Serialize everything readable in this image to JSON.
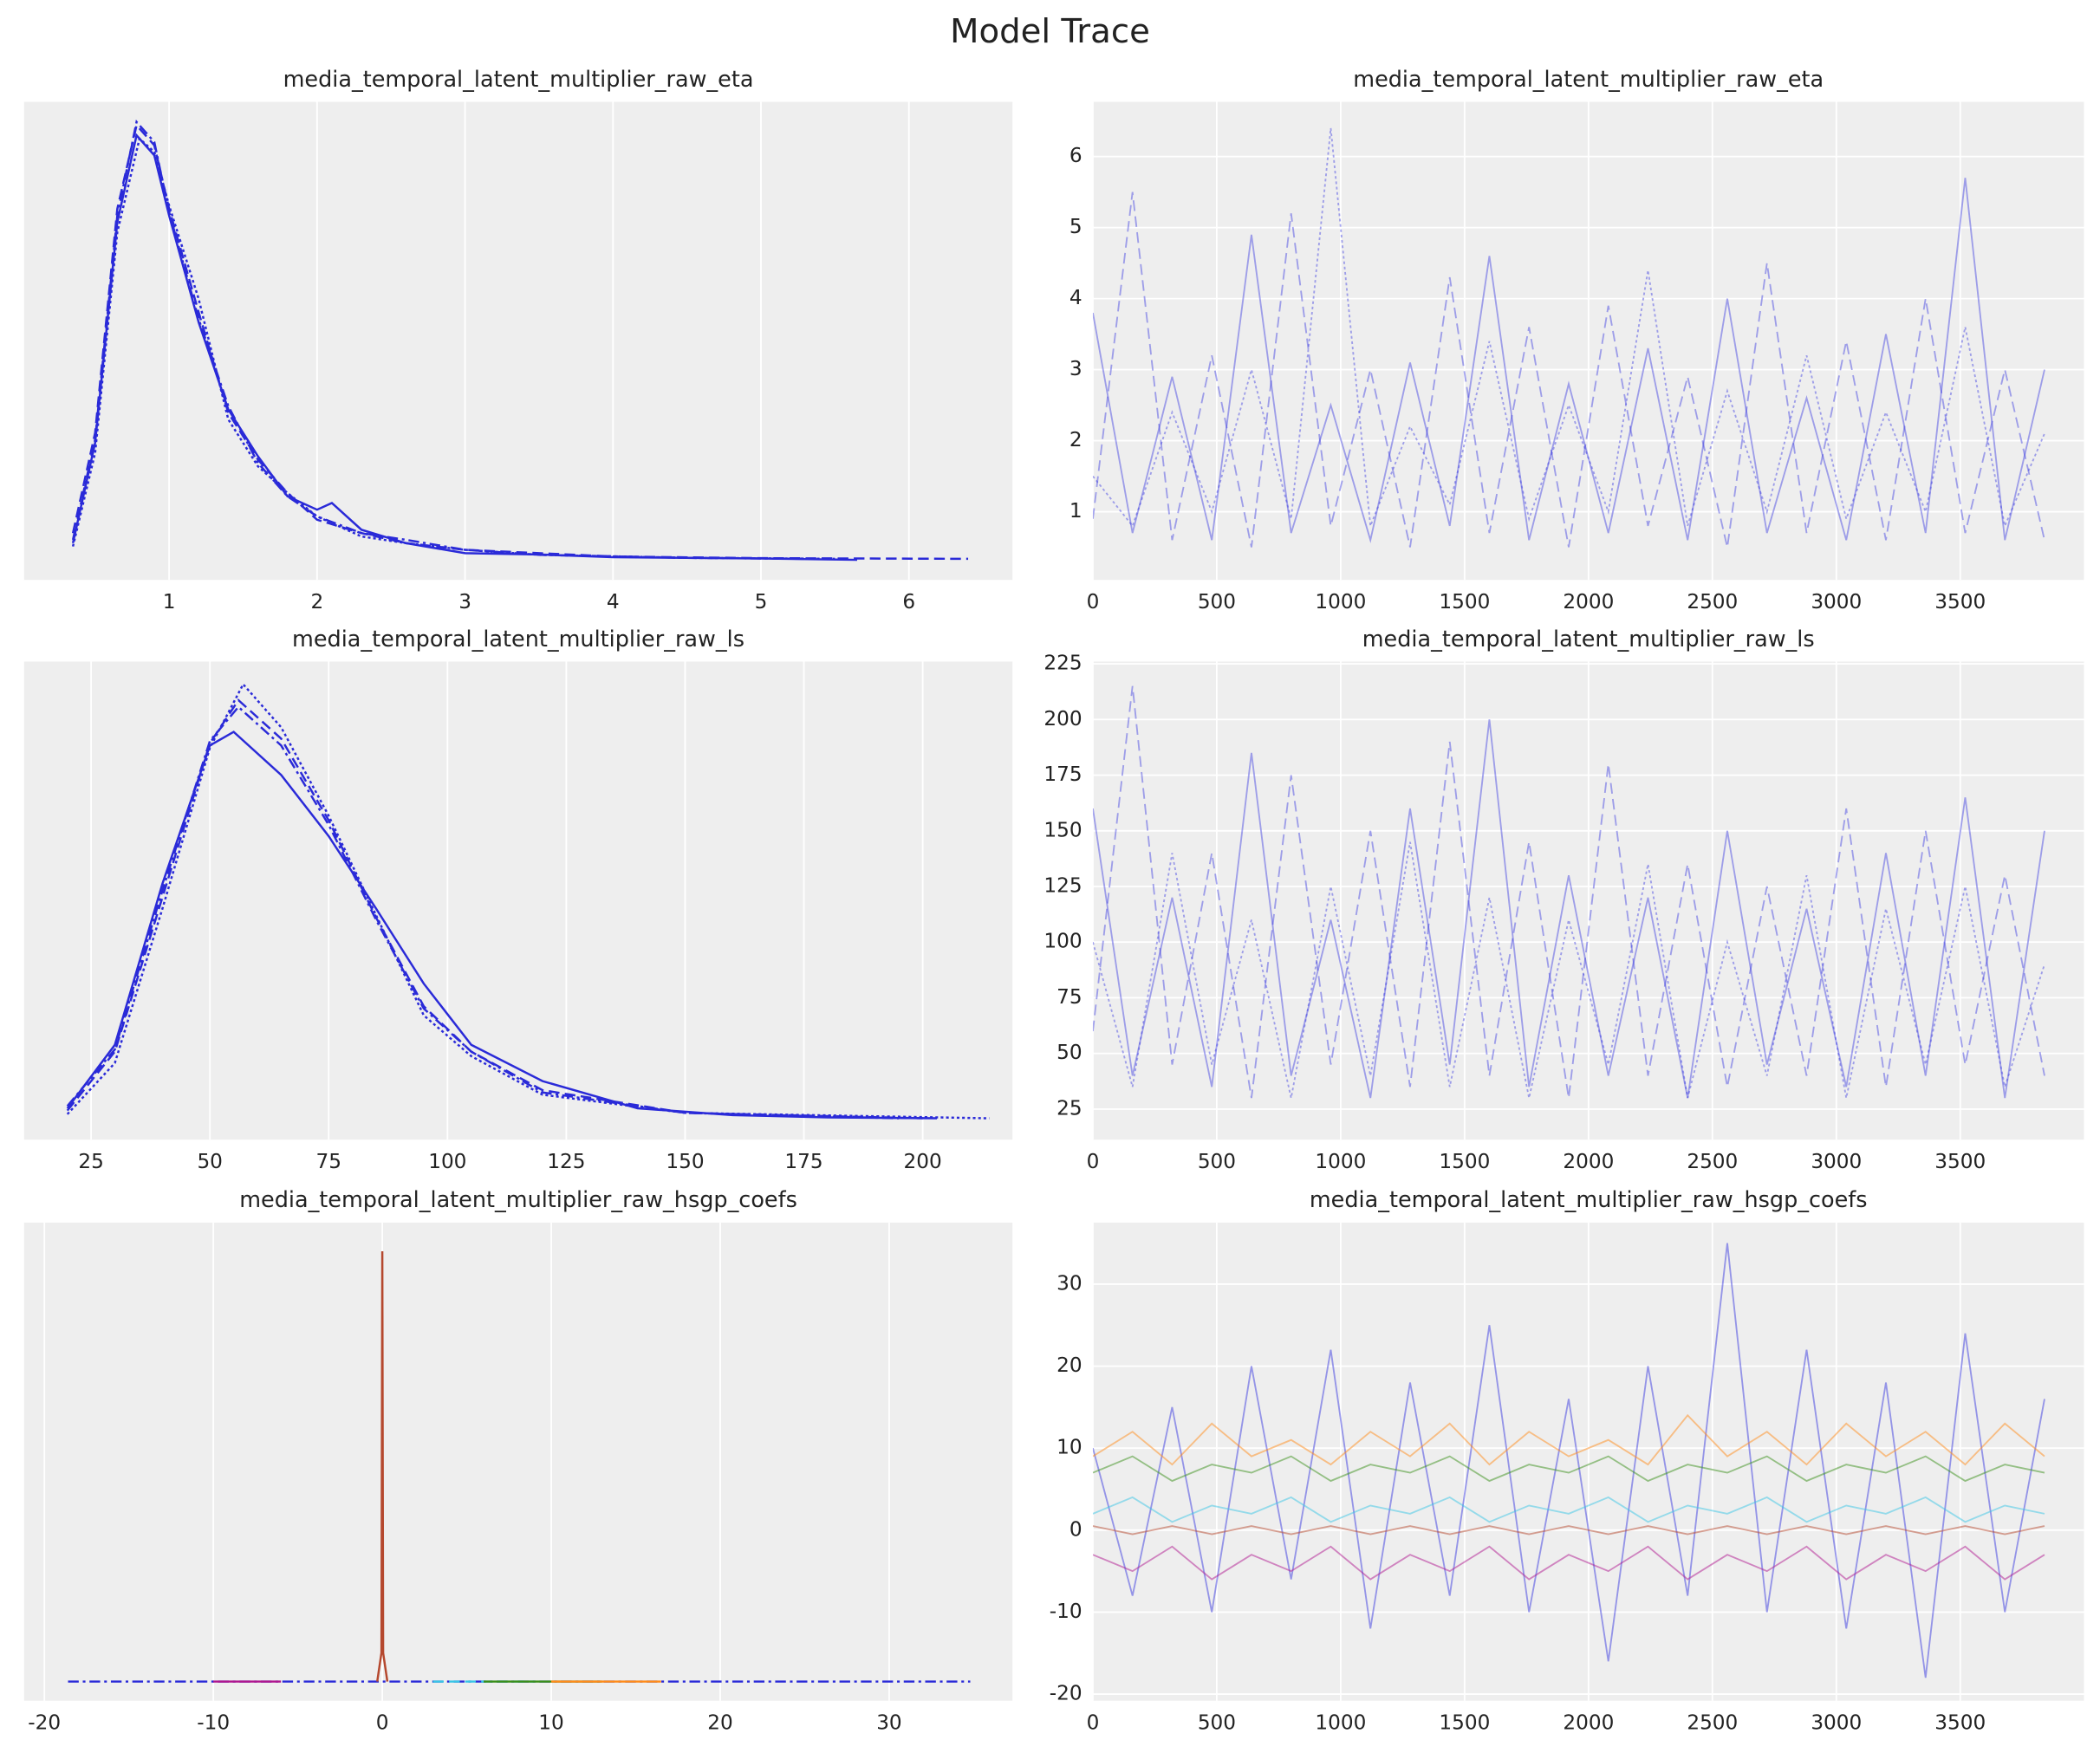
{
  "title": "Model Trace",
  "chart_data": [
    {
      "type": "line",
      "title": "media_temporal_latent_multiplier_raw_eta",
      "xlim": [
        0.02,
        6.7
      ],
      "xticks": [
        1,
        2,
        3,
        4,
        5,
        6
      ],
      "ylim": [
        -0.06,
        1.37
      ],
      "grid": true,
      "series": [
        {
          "color": "#2a2ad8",
          "linestyle": "solid",
          "x": [
            0.35,
            0.5,
            0.65,
            0.78,
            0.9,
            1.0,
            1.2,
            1.4,
            1.6,
            1.8,
            2.0,
            2.1,
            2.3,
            2.6,
            3.0,
            3.5,
            4.0,
            5.0,
            5.65
          ],
          "values": [
            0.05,
            0.35,
            1.01,
            1.27,
            1.21,
            1.03,
            0.71,
            0.45,
            0.31,
            0.19,
            0.15,
            0.17,
            0.09,
            0.05,
            0.02,
            0.016,
            0.008,
            0.004,
            0.0
          ]
        },
        {
          "color": "#2a2ad8",
          "linestyle": "dashed",
          "x": [
            0.35,
            0.5,
            0.65,
            0.78,
            0.9,
            1.0,
            1.2,
            1.4,
            1.6,
            1.8,
            2.0,
            2.3,
            2.6,
            3.0,
            3.5,
            4.0,
            5.0,
            6.4
          ],
          "values": [
            0.08,
            0.38,
            1.05,
            1.3,
            1.24,
            1.05,
            0.74,
            0.44,
            0.3,
            0.2,
            0.12,
            0.08,
            0.05,
            0.03,
            0.02,
            0.01,
            0.005,
            0.003
          ]
        },
        {
          "color": "#2a2ad8",
          "linestyle": "dotted",
          "x": [
            0.35,
            0.5,
            0.65,
            0.8,
            0.9,
            1.0,
            1.2,
            1.4,
            1.6,
            1.8,
            2.0,
            2.3,
            2.6,
            3.0,
            3.5,
            4.5,
            5.5
          ],
          "values": [
            0.04,
            0.32,
            0.98,
            1.26,
            1.22,
            1.06,
            0.78,
            0.42,
            0.28,
            0.2,
            0.13,
            0.07,
            0.05,
            0.03,
            0.015,
            0.006,
            0.003
          ]
        },
        {
          "color": "#2a2ad8",
          "linestyle": "dashdot",
          "x": [
            0.35,
            0.5,
            0.65,
            0.78,
            0.9,
            1.0,
            1.2,
            1.4,
            1.6,
            1.8,
            2.0,
            2.3,
            2.6,
            3.0,
            3.5,
            4.5,
            5.3
          ],
          "values": [
            0.06,
            0.36,
            1.03,
            1.31,
            1.25,
            1.04,
            0.72,
            0.46,
            0.29,
            0.19,
            0.13,
            0.08,
            0.06,
            0.03,
            0.015,
            0.006,
            0.003
          ]
        }
      ]
    },
    {
      "type": "line",
      "title": "media_temporal_latent_multiplier_raw_eta",
      "xlim": [
        0,
        3999
      ],
      "xticks": [
        0,
        500,
        1000,
        1500,
        2000,
        2500,
        3000,
        3500
      ],
      "ylim": [
        0.04,
        6.77
      ],
      "yticks": [
        1,
        2,
        3,
        4,
        5,
        6
      ],
      "grid": true,
      "alpha": 0.45,
      "x": [
        0,
        160,
        320,
        480,
        640,
        800,
        960,
        1120,
        1280,
        1440,
        1600,
        1760,
        1920,
        2080,
        2240,
        2400,
        2560,
        2720,
        2880,
        3040,
        3200,
        3360,
        3520,
        3680,
        3840
      ],
      "series": [
        {
          "color": "#3a3ae0",
          "linestyle": "solid",
          "values": [
            3.8,
            0.7,
            2.9,
            0.6,
            4.9,
            0.7,
            2.5,
            0.6,
            3.1,
            0.8,
            4.6,
            0.6,
            2.8,
            0.7,
            3.3,
            0.6,
            4.0,
            0.7,
            2.6,
            0.6,
            3.5,
            0.7,
            5.7,
            0.6,
            3.0
          ]
        },
        {
          "color": "#3a3ae0",
          "linestyle": "dashed",
          "values": [
            0.9,
            5.5,
            0.6,
            3.2,
            0.5,
            5.2,
            0.8,
            3.0,
            0.5,
            4.3,
            0.7,
            3.6,
            0.5,
            3.9,
            0.8,
            2.9,
            0.5,
            4.5,
            0.7,
            3.4,
            0.6,
            4.0,
            0.7,
            3.0,
            0.6
          ]
        },
        {
          "color": "#3a3ae0",
          "linestyle": "dotted",
          "values": [
            1.5,
            0.8,
            2.4,
            1.0,
            3.0,
            0.9,
            6.4,
            0.8,
            2.2,
            1.1,
            3.4,
            0.9,
            2.5,
            1.0,
            4.4,
            0.8,
            2.7,
            1.0,
            3.2,
            0.9,
            2.4,
            1.0,
            3.6,
            0.8,
            2.1
          ]
        }
      ]
    },
    {
      "type": "line",
      "title": "media_temporal_latent_multiplier_raw_ls",
      "xlim": [
        10.9,
        218.9
      ],
      "xticks": [
        25,
        50,
        75,
        100,
        125,
        150,
        175,
        200
      ],
      "ylim": [
        -0.00088,
        0.0202
      ],
      "grid": true,
      "series": [
        {
          "color": "#2a2ad8",
          "linestyle": "solid",
          "x": [
            20,
            30,
            40,
            50,
            55,
            65,
            75,
            85,
            95,
            105,
            120,
            140,
            160,
            180,
            203
          ],
          "values": [
            0.0005,
            0.0033,
            0.0104,
            0.0165,
            0.0171,
            0.0152,
            0.0125,
            0.0093,
            0.006,
            0.0033,
            0.0017,
            0.0005,
            0.0002,
            0.0001,
            6e-05
          ]
        },
        {
          "color": "#2a2ad8",
          "linestyle": "dotted",
          "x": [
            20,
            30,
            40,
            50,
            57,
            65,
            75,
            85,
            95,
            105,
            120,
            150,
            214
          ],
          "values": [
            0.00024,
            0.0025,
            0.0093,
            0.0164,
            0.0192,
            0.0173,
            0.0134,
            0.009,
            0.0046,
            0.0028,
            0.0011,
            0.0003,
            6e-05
          ]
        },
        {
          "color": "#2a2ad8",
          "linestyle": "dashed",
          "x": [
            20,
            30,
            40,
            50,
            56,
            65,
            75,
            85,
            95,
            105,
            120,
            150,
            200
          ],
          "values": [
            0.0004,
            0.003,
            0.0098,
            0.0166,
            0.0185,
            0.0168,
            0.0132,
            0.0089,
            0.005,
            0.003,
            0.0013,
            0.0003,
            6e-05
          ]
        },
        {
          "color": "#2a2ad8",
          "linestyle": "dashdot",
          "x": [
            20,
            30,
            40,
            50,
            56,
            65,
            75,
            85,
            95,
            105,
            120,
            150,
            195
          ],
          "values": [
            0.0006,
            0.0031,
            0.0101,
            0.0167,
            0.0182,
            0.0165,
            0.013,
            0.0088,
            0.0049,
            0.003,
            0.0012,
            0.0003,
            6e-05
          ]
        }
      ]
    },
    {
      "type": "line",
      "title": "media_temporal_latent_multiplier_raw_ls",
      "xlim": [
        0,
        3999
      ],
      "xticks": [
        0,
        500,
        1000,
        1500,
        2000,
        2500,
        3000,
        3500
      ],
      "ylim": [
        11.3,
        226
      ],
      "yticks": [
        25,
        50,
        75,
        100,
        125,
        150,
        175,
        200,
        225
      ],
      "grid": true,
      "alpha": 0.45,
      "x": [
        0,
        160,
        320,
        480,
        640,
        800,
        960,
        1120,
        1280,
        1440,
        1600,
        1760,
        1920,
        2080,
        2240,
        2400,
        2560,
        2720,
        2880,
        3040,
        3200,
        3360,
        3520,
        3680,
        3840
      ],
      "series": [
        {
          "color": "#3a3ae0",
          "linestyle": "solid",
          "values": [
            160,
            40,
            120,
            35,
            185,
            40,
            110,
            30,
            160,
            45,
            200,
            35,
            130,
            40,
            120,
            30,
            150,
            45,
            115,
            35,
            140,
            40,
            165,
            30,
            150
          ]
        },
        {
          "color": "#3a3ae0",
          "linestyle": "dashed",
          "values": [
            60,
            215,
            45,
            140,
            30,
            175,
            45,
            150,
            35,
            190,
            40,
            145,
            30,
            180,
            40,
            135,
            35,
            125,
            40,
            160,
            35,
            150,
            45,
            130,
            40
          ]
        },
        {
          "color": "#3a3ae0",
          "linestyle": "dotted",
          "values": [
            100,
            35,
            140,
            45,
            110,
            30,
            125,
            40,
            145,
            35,
            120,
            30,
            110,
            45,
            135,
            30,
            100,
            40,
            130,
            30,
            115,
            45,
            125,
            35,
            90
          ]
        }
      ]
    },
    {
      "type": "line",
      "title": "media_temporal_latent_multiplier_raw_hsgp_coefs",
      "xlim": [
        -21.2,
        37.3
      ],
      "xticks": [
        -20,
        -10,
        0,
        10,
        20,
        30
      ],
      "ylim": [
        -0.4,
        9.6
      ],
      "grid": true,
      "series": [
        {
          "color": "#2a2ad8",
          "linestyle": "dashdot",
          "x": [
            -18.6,
            34.8
          ],
          "values": [
            0,
            0
          ]
        },
        {
          "color": "#b0178f",
          "linestyle": "solid",
          "x": [
            -10,
            -6
          ],
          "values": [
            0,
            0
          ]
        },
        {
          "color": "#39c6e6",
          "linestyle": "dashed",
          "x": [
            3,
            9
          ],
          "values": [
            0,
            0
          ]
        },
        {
          "color": "#3a8f1a",
          "linestyle": "solid",
          "x": [
            6,
            13
          ],
          "values": [
            0,
            0
          ]
        },
        {
          "color": "#ff8c1a",
          "linestyle": "solid",
          "x": [
            10,
            16.5
          ],
          "values": [
            0,
            0
          ]
        },
        {
          "color": "#b5482e",
          "linestyle": "solid",
          "x": [
            -0.3,
            -0.05,
            0,
            0.05,
            0.3
          ],
          "values": [
            0,
            0.6,
            9,
            0.6,
            0
          ]
        }
      ]
    },
    {
      "type": "line",
      "title": "media_temporal_latent_multiplier_raw_hsgp_coefs",
      "xlim": [
        0,
        3999
      ],
      "xticks": [
        0,
        500,
        1000,
        1500,
        2000,
        2500,
        3000,
        3500
      ],
      "ylim": [
        -20.8,
        37.5
      ],
      "yticks": [
        -20,
        -10,
        0,
        10,
        20,
        30
      ],
      "grid": true,
      "alpha": 0.5,
      "x": [
        0,
        160,
        320,
        480,
        640,
        800,
        960,
        1120,
        1280,
        1440,
        1600,
        1760,
        1920,
        2080,
        2240,
        2400,
        2560,
        2720,
        2880,
        3040,
        3200,
        3360,
        3520,
        3680,
        3840
      ],
      "series": [
        {
          "color": "#3a3ae0",
          "linestyle": "solid",
          "values": [
            10,
            -8,
            15,
            -10,
            20,
            -6,
            22,
            -12,
            18,
            -8,
            25,
            -10,
            16,
            -16,
            20,
            -8,
            35,
            -10,
            22,
            -12,
            18,
            -18,
            24,
            -10,
            16
          ]
        },
        {
          "color": "#ff8c1a",
          "linestyle": "solid",
          "values": [
            9,
            12,
            8,
            13,
            9,
            11,
            8,
            12,
            9,
            13,
            8,
            12,
            9,
            11,
            8,
            14,
            9,
            12,
            8,
            13,
            9,
            12,
            8,
            13,
            9
          ]
        },
        {
          "color": "#3a8f1a",
          "linestyle": "solid",
          "values": [
            7,
            9,
            6,
            8,
            7,
            9,
            6,
            8,
            7,
            9,
            6,
            8,
            7,
            9,
            6,
            8,
            7,
            9,
            6,
            8,
            7,
            9,
            6,
            8,
            7
          ]
        },
        {
          "color": "#39c6e6",
          "linestyle": "solid",
          "values": [
            2,
            4,
            1,
            3,
            2,
            4,
            1,
            3,
            2,
            4,
            1,
            3,
            2,
            4,
            1,
            3,
            2,
            4,
            1,
            3,
            2,
            4,
            1,
            3,
            2
          ]
        },
        {
          "color": "#b5482e",
          "linestyle": "solid",
          "values": [
            0.5,
            -0.5,
            0.5,
            -0.5,
            0.5,
            -0.5,
            0.5,
            -0.5,
            0.5,
            -0.5,
            0.5,
            -0.5,
            0.5,
            -0.5,
            0.5,
            -0.5,
            0.5,
            -0.5,
            0.5,
            -0.5,
            0.5,
            -0.5,
            0.5,
            -0.5,
            0.5
          ]
        },
        {
          "color": "#b0178f",
          "linestyle": "solid",
          "values": [
            -3,
            -5,
            -2,
            -6,
            -3,
            -5,
            -2,
            -6,
            -3,
            -5,
            -2,
            -6,
            -3,
            -5,
            -2,
            -6,
            -3,
            -5,
            -2,
            -6,
            -3,
            -5,
            -2,
            -6,
            -3
          ]
        }
      ]
    }
  ]
}
